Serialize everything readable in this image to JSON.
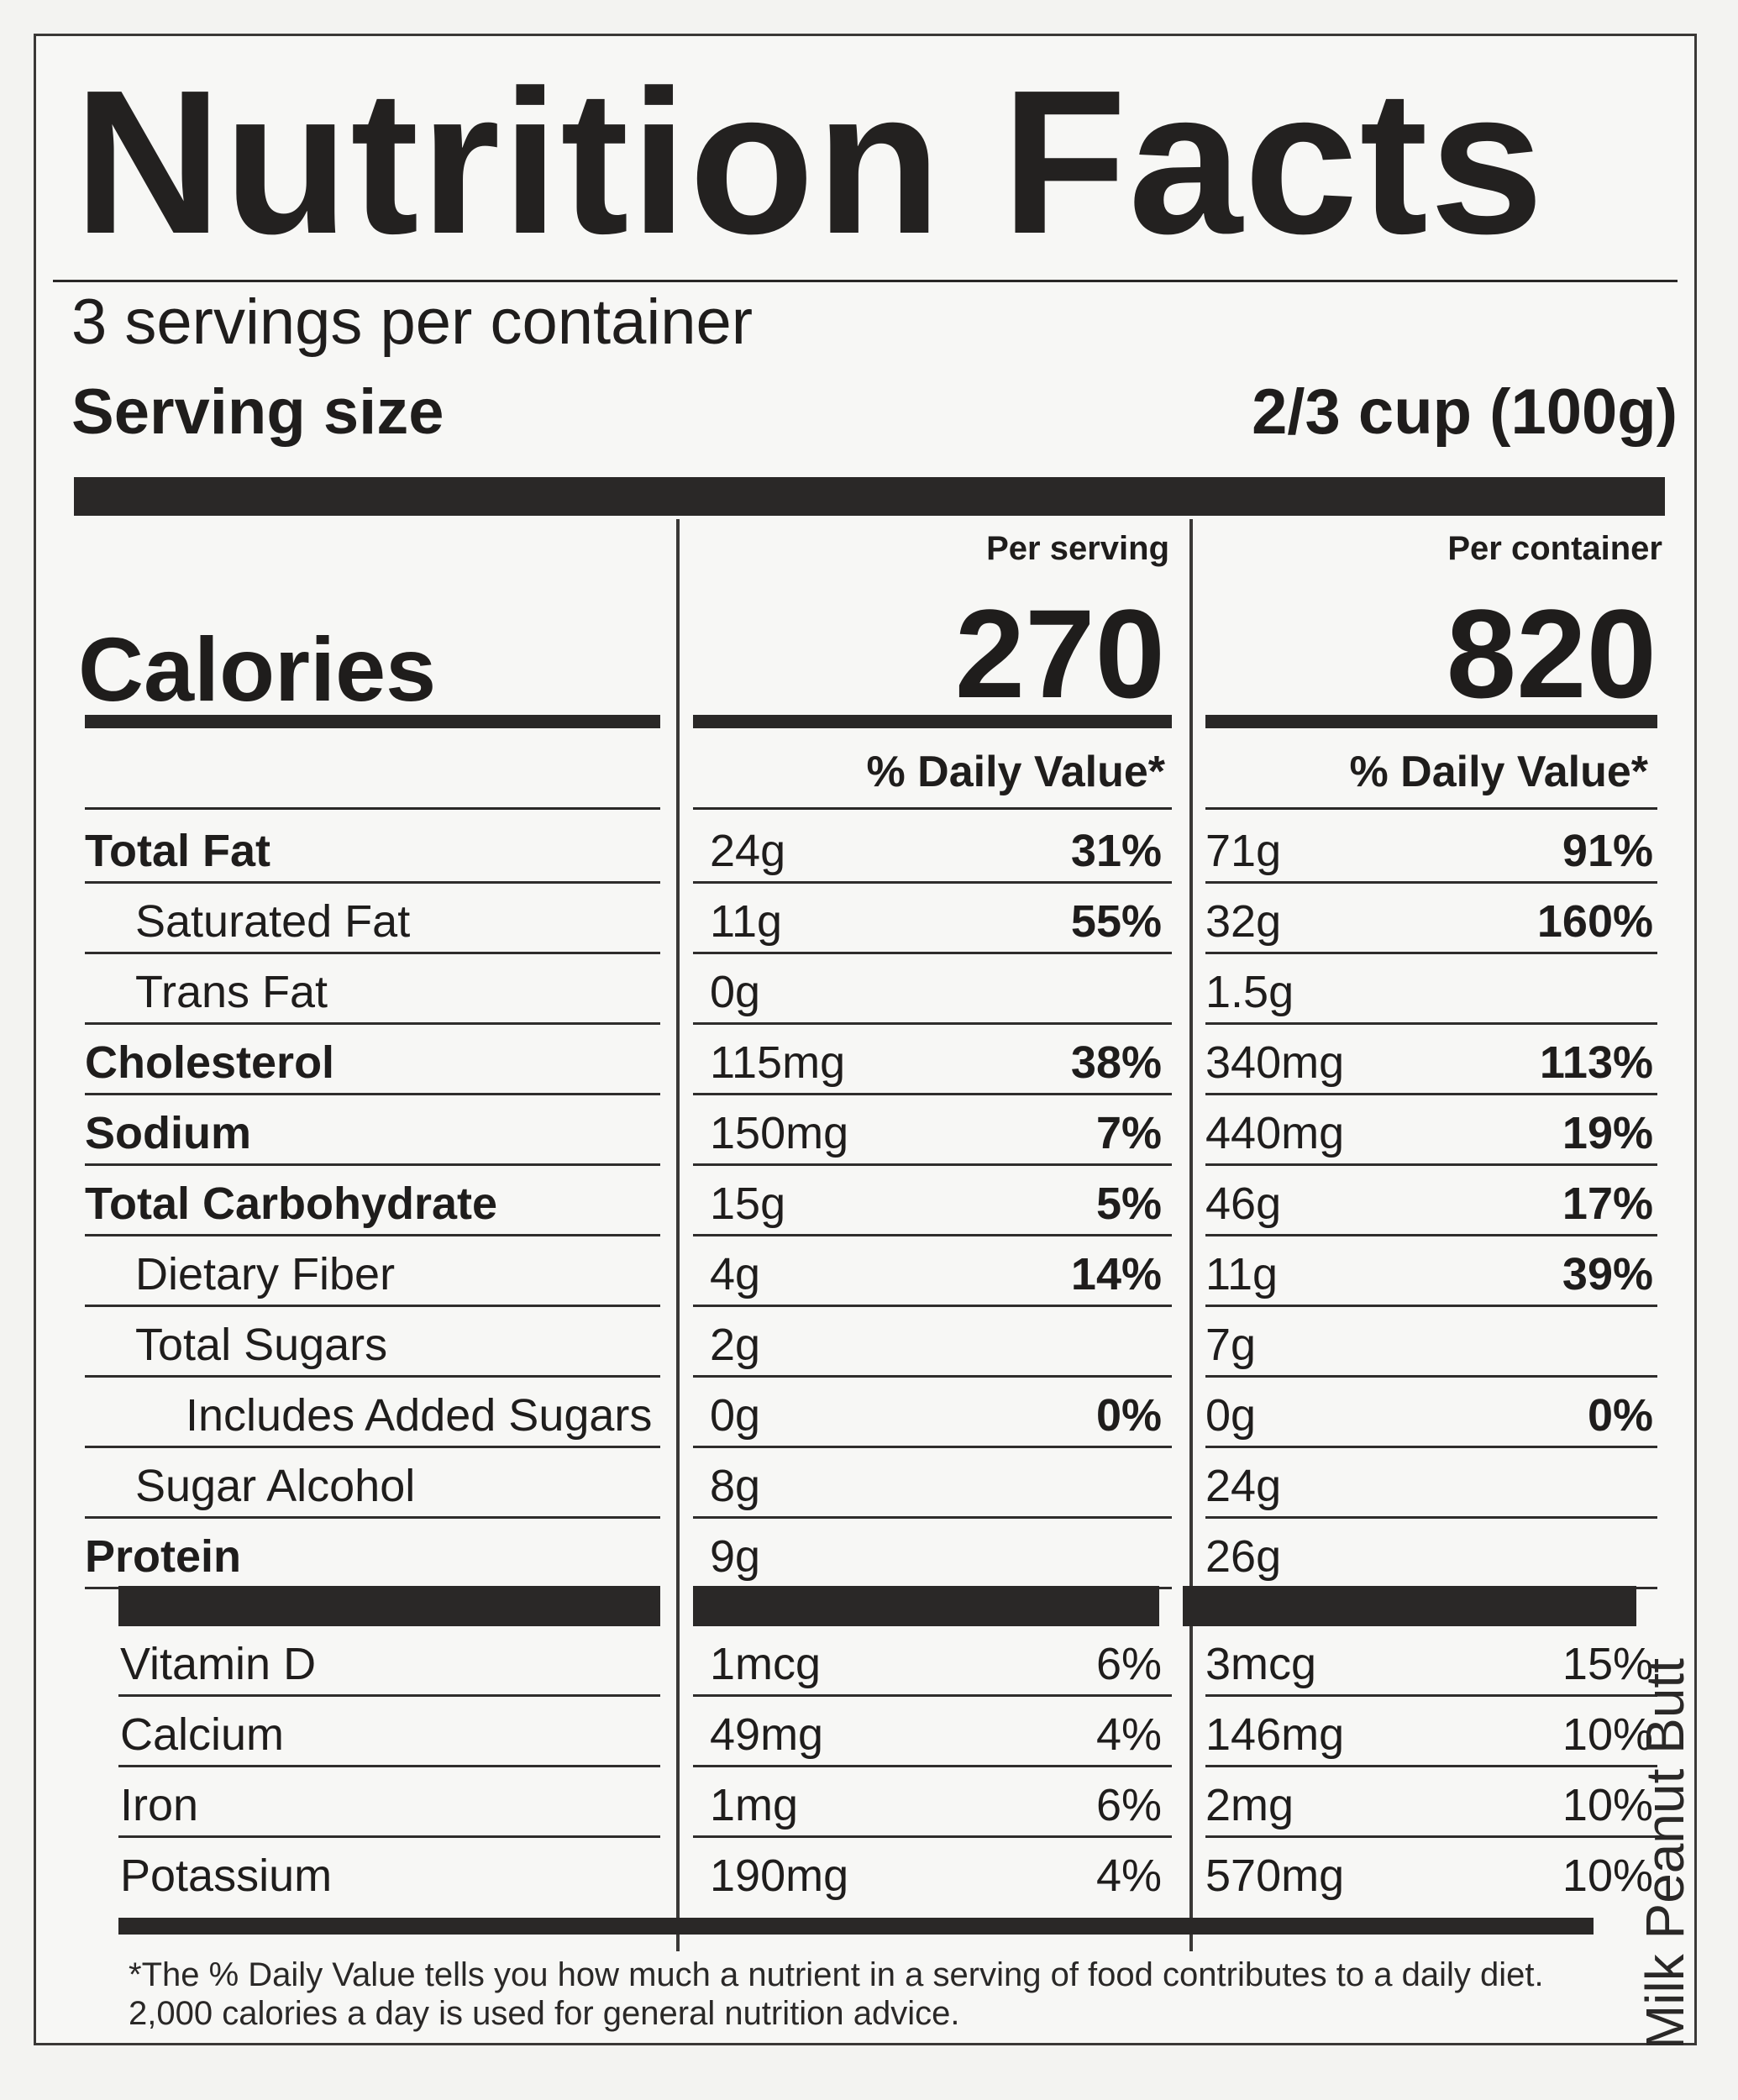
{
  "title": "Nutrition Facts",
  "servings_per_container": "3 servings per container",
  "serving_size": {
    "label": "Serving size",
    "value": "2/3 cup (100g)"
  },
  "columns": {
    "per_serving": "Per serving",
    "per_container": "Per container",
    "daily_value": "% Daily Value*"
  },
  "calories": {
    "label": "Calories",
    "per_serving": "270",
    "per_container": "820"
  },
  "nutrients": [
    {
      "name": "Total Fat",
      "bold": true,
      "indent": 0,
      "amount": "24g",
      "dv": "31%",
      "amount_c": "71g",
      "dv_c": "91%"
    },
    {
      "name": "Saturated Fat",
      "bold": false,
      "indent": 1,
      "amount": "11g",
      "dv": "55%",
      "amount_c": "32g",
      "dv_c": "160%"
    },
    {
      "name": "Trans Fat",
      "bold": false,
      "indent": 1,
      "amount": "0g",
      "dv": "",
      "amount_c": "1.5g",
      "dv_c": ""
    },
    {
      "name": "Cholesterol",
      "bold": true,
      "indent": 0,
      "amount": "115mg",
      "dv": "38%",
      "amount_c": "340mg",
      "dv_c": "113%"
    },
    {
      "name": "Sodium",
      "bold": true,
      "indent": 0,
      "amount": "150mg",
      "dv": "7%",
      "amount_c": "440mg",
      "dv_c": "19%"
    },
    {
      "name": "Total Carbohydrate",
      "bold": true,
      "indent": 0,
      "amount": "15g",
      "dv": "5%",
      "amount_c": "46g",
      "dv_c": "17%"
    },
    {
      "name": "Dietary Fiber",
      "bold": false,
      "indent": 1,
      "amount": "4g",
      "dv": "14%",
      "amount_c": "11g",
      "dv_c": "39%"
    },
    {
      "name": "Total Sugars",
      "bold": false,
      "indent": 1,
      "amount": "2g",
      "dv": "",
      "amount_c": "7g",
      "dv_c": ""
    },
    {
      "name": "Includes Added Sugars",
      "bold": false,
      "indent": 2,
      "amount": "0g",
      "dv": "0%",
      "amount_c": "0g",
      "dv_c": "0%"
    },
    {
      "name": "Sugar Alcohol",
      "bold": false,
      "indent": 1,
      "amount": "8g",
      "dv": "",
      "amount_c": "24g",
      "dv_c": ""
    },
    {
      "name": "Protein",
      "bold": true,
      "indent": 0,
      "amount": "9g",
      "dv": "",
      "amount_c": "26g",
      "dv_c": ""
    }
  ],
  "vitamins": [
    {
      "name": "Vitamin D",
      "amount": "1mcg",
      "dv": "6%",
      "amount_c": "3mcg",
      "dv_c": "15%"
    },
    {
      "name": "Calcium",
      "amount": "49mg",
      "dv": "4%",
      "amount_c": "146mg",
      "dv_c": "10%"
    },
    {
      "name": "Iron",
      "amount": "1mg",
      "dv": "6%",
      "amount_c": "2mg",
      "dv_c": "10%"
    },
    {
      "name": "Potassium",
      "amount": "190mg",
      "dv": "4%",
      "amount_c": "570mg",
      "dv_c": "10%"
    }
  ],
  "footnote": [
    "*The % Daily Value tells you how much a nutrient in a serving of food contributes to a daily diet.",
    "2,000 calories a day is used for general nutrition advice."
  ],
  "edge_text": "Milk Peanut Butt"
}
